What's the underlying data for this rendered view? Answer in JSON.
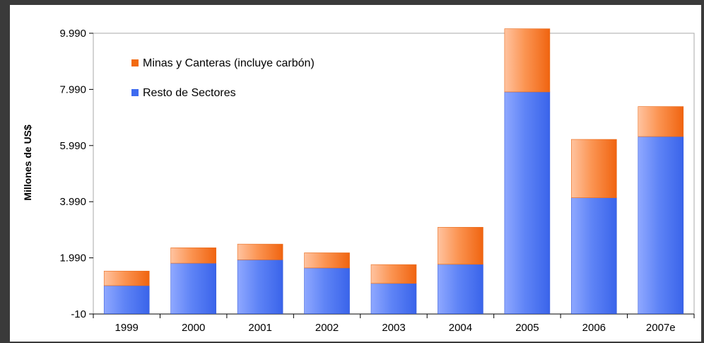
{
  "chart_data": {
    "type": "bar",
    "stacked": true,
    "title": "",
    "xlabel": "",
    "ylabel": "Millones de US$",
    "categories": [
      "1999",
      "2000",
      "2001",
      "2002",
      "2003",
      "2004",
      "2005",
      "2006",
      "2007e"
    ],
    "ylim": [
      -10,
      9990
    ],
    "yticks": [
      "-10",
      "1.990",
      "3.990",
      "5.990",
      "7.990",
      "9.990"
    ],
    "ytick_values": [
      -10,
      1990,
      3990,
      5990,
      7990,
      9990
    ],
    "series": [
      {
        "name": "Resto de Sectores",
        "color": "#3e6bf0",
        "values": [
          1000,
          1800,
          1920,
          1630,
          1080,
          1760,
          7900,
          4130,
          6310
        ]
      },
      {
        "name": "Minas y Canteras (incluye carbón)",
        "color": "#f26a10",
        "values": [
          520,
          550,
          560,
          540,
          670,
          1320,
          2250,
          2080,
          1070
        ]
      }
    ],
    "legend": [
      "Minas y Canteras (incluye carbón)",
      "Resto de Sectores"
    ],
    "legend_position": "top-left",
    "grid": false
  }
}
